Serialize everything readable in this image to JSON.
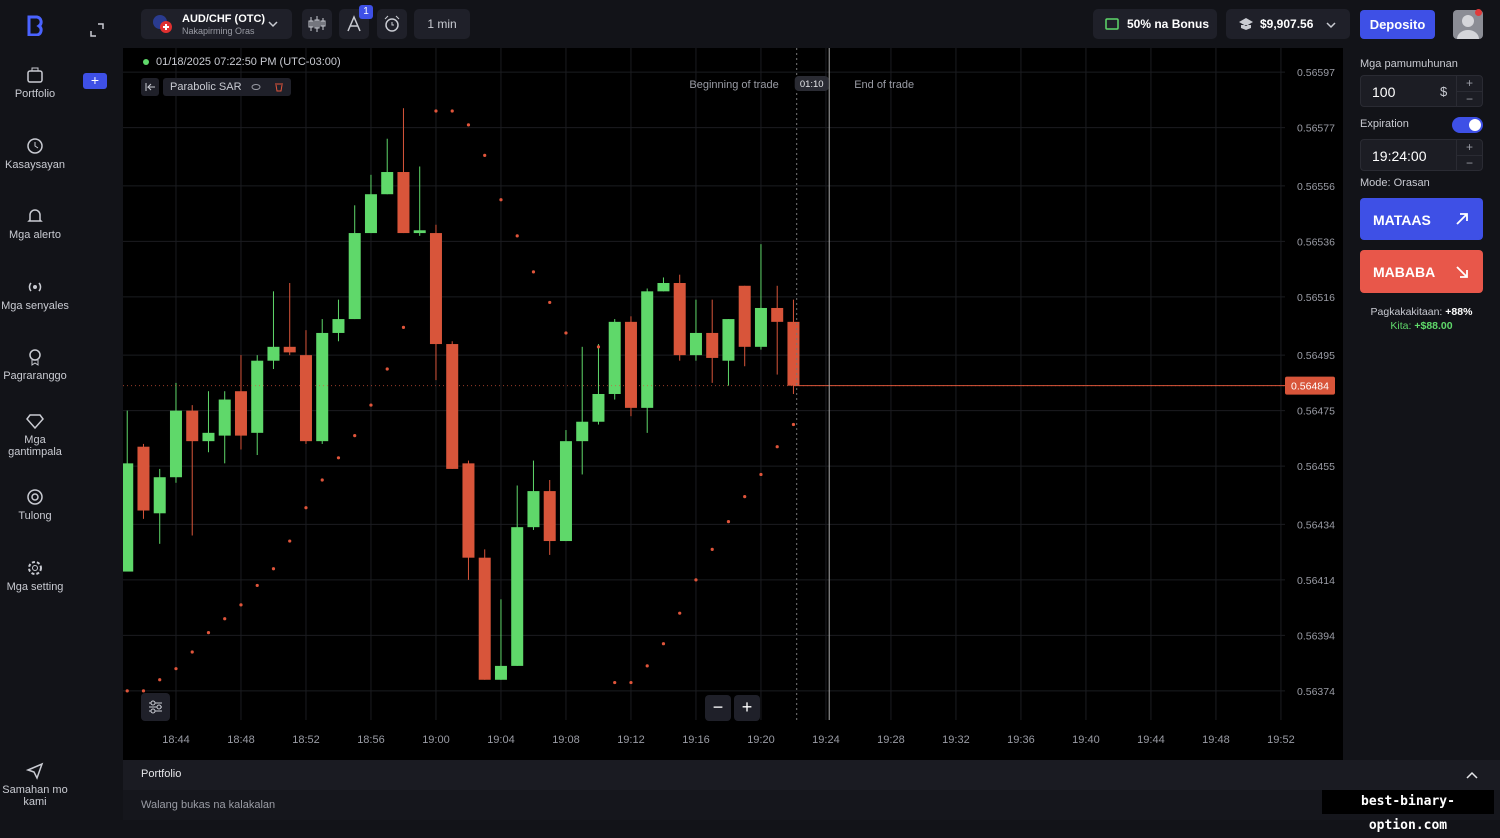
{
  "sidebar": {
    "items": [
      "Portfolio",
      "Kasaysayan",
      "Mga alerto",
      "Mga senyales",
      "Pagraranggo",
      "Mga gantimpala",
      "Tulong",
      "Mga setting"
    ],
    "footer_item": "Samahan mo kami"
  },
  "topbar": {
    "asset": "AUD/CHF (OTC)",
    "asset_mode": "Nakapirming Oras",
    "drawings_badge": 1,
    "timeframe": "1 min",
    "bonus": "50% na Bonus",
    "balance": "$9,907.56",
    "deposit": "Deposito"
  },
  "chart_data": {
    "type": "candlestick",
    "timestamp": "01/18/2025 07:22:50 PM (UTC-03:00)",
    "indicator": "Parabolic SAR",
    "trade_start_label": "Beginning of trade",
    "trade_end_label": "End of trade",
    "timer": "01:10",
    "x": [
      1121,
      1122,
      1123,
      1124,
      1125,
      1126,
      1127,
      1128,
      1129,
      1130,
      1131,
      1132,
      1133,
      1134,
      1135,
      1136,
      1137,
      1138,
      1139,
      1140,
      1141,
      1142,
      1143,
      1144,
      1145,
      1146,
      1147,
      1148,
      1149,
      1150,
      1151,
      1152,
      1153,
      1154,
      1155,
      1156,
      1157,
      1158,
      1159,
      1160,
      1161,
      1162
    ],
    "open": [
      0.56417,
      0.56462,
      0.56438,
      0.56451,
      0.56475,
      0.56464,
      0.56466,
      0.56482,
      0.56467,
      0.56493,
      0.56498,
      0.56495,
      0.56464,
      0.56503,
      0.56508,
      0.56539,
      0.56553,
      0.56561,
      0.56539,
      0.56539,
      0.56499,
      0.56456,
      0.56422,
      0.56378,
      0.56383,
      0.56433,
      0.56446,
      0.56428,
      0.56464,
      0.56471,
      0.56481,
      0.56507,
      0.56476,
      0.56518,
      0.56521,
      0.56495,
      0.56503,
      0.56493,
      0.5652,
      0.56498,
      0.56512,
      0.56507
    ],
    "high": [
      0.56475,
      0.56463,
      0.56454,
      0.56485,
      0.56477,
      0.56482,
      0.56482,
      0.56495,
      0.56495,
      0.56518,
      0.56521,
      0.56504,
      0.56508,
      0.56515,
      0.56549,
      0.5656,
      0.56573,
      0.56584,
      0.56563,
      0.56542,
      0.565,
      0.56457,
      0.56425,
      0.56407,
      0.56448,
      0.56457,
      0.5645,
      0.56468,
      0.56498,
      0.56499,
      0.56508,
      0.56509,
      0.56519,
      0.56523,
      0.56524,
      0.56515,
      0.56515,
      0.56508,
      0.5652,
      0.56535,
      0.5652,
      0.56515
    ],
    "low": [
      0.56417,
      0.56436,
      0.56427,
      0.56449,
      0.5643,
      0.5646,
      0.56456,
      0.56461,
      0.56459,
      0.5649,
      0.56495,
      0.56463,
      0.56463,
      0.565,
      0.56508,
      0.56539,
      0.56553,
      0.56539,
      0.56538,
      0.56486,
      0.56454,
      0.56414,
      0.56378,
      0.56378,
      0.56383,
      0.56432,
      0.56423,
      0.56428,
      0.56452,
      0.5647,
      0.56479,
      0.56473,
      0.56467,
      0.56518,
      0.56493,
      0.56493,
      0.56485,
      0.56484,
      0.56491,
      0.56497,
      0.56488,
      0.56481
    ],
    "close": [
      0.56456,
      0.56439,
      0.56451,
      0.56475,
      0.56464,
      0.56467,
      0.56479,
      0.56466,
      0.56493,
      0.56498,
      0.56496,
      0.56464,
      0.56503,
      0.56508,
      0.56539,
      0.56553,
      0.56561,
      0.56539,
      0.5654,
      0.56499,
      0.56454,
      0.56422,
      0.56378,
      0.56383,
      0.56433,
      0.56446,
      0.56428,
      0.56464,
      0.56471,
      0.56481,
      0.56507,
      0.56476,
      0.56518,
      0.56521,
      0.56495,
      0.56503,
      0.56494,
      0.56508,
      0.56498,
      0.56512,
      0.56507,
      0.56484
    ],
    "sar": [
      0.56374,
      0.56374,
      0.56378,
      0.56382,
      0.56388,
      0.56395,
      0.564,
      0.56405,
      0.56412,
      0.56418,
      0.56428,
      0.5644,
      0.5645,
      0.56458,
      0.56466,
      0.56477,
      0.5649,
      0.56505,
      null,
      0.56583,
      0.56583,
      0.56578,
      0.56567,
      0.56551,
      0.56538,
      0.56525,
      0.56514,
      0.56503,
      null,
      0.56498,
      0.56377,
      0.56377,
      0.56383,
      0.56391,
      0.56402,
      0.56414,
      0.56425,
      0.56435,
      0.56444,
      0.56452,
      0.56462,
      0.5647
    ],
    "xlim": [
      1120.74,
      1192.25
    ],
    "xticks": [
      {
        "value": 1124,
        "label": "18:44"
      },
      {
        "value": 1128,
        "label": "18:48"
      },
      {
        "value": 1132,
        "label": "18:52"
      },
      {
        "value": 1136,
        "label": "18:56"
      },
      {
        "value": 1140,
        "label": "19:00"
      },
      {
        "value": 1144,
        "label": "19:04"
      },
      {
        "value": 1148,
        "label": "19:08"
      },
      {
        "value": 1152,
        "label": "19:12"
      },
      {
        "value": 1156,
        "label": "19:16"
      },
      {
        "value": 1160,
        "label": "19:20"
      },
      {
        "value": 1164,
        "label": "19:24"
      },
      {
        "value": 1168,
        "label": "19:28"
      },
      {
        "value": 1172,
        "label": "19:32"
      },
      {
        "value": 1176,
        "label": "19:36"
      },
      {
        "value": 1180,
        "label": "19:40"
      },
      {
        "value": 1184,
        "label": "19:44"
      },
      {
        "value": 1188,
        "label": "19:48"
      },
      {
        "value": 1192,
        "label": "19:52"
      }
    ],
    "ylim": [
      0.563635,
      0.566057
    ],
    "yticks": [
      0.56597,
      0.56577,
      0.56556,
      0.56536,
      0.56516,
      0.56495,
      0.56475,
      0.56455,
      0.56434,
      0.56414,
      0.56394,
      0.56374
    ],
    "current_price": 0.56484,
    "trade_start": 1162.2,
    "trade_end": 1164.2,
    "up_color": "#5fd86a",
    "down_color": "#d8553a",
    "sar_color": "#e0553b",
    "grid": true
  },
  "trade_panel": {
    "investment_label": "Mga pamumuhunan",
    "investment": 100,
    "currency": "$",
    "expiration_label": "Expiration",
    "expiration": "19:24:00",
    "mode": "Mode: Orasan",
    "up": "MATAAS",
    "down": "MABABA",
    "payout_label": "Pagkakakitaan:",
    "payout_value": "+88%",
    "profit_label": "Kita:",
    "profit_value": "+$88.00"
  },
  "portfolio": {
    "title": "Portfolio",
    "empty": "Walang bukas na kalakalan"
  },
  "watermark": "best-binary-option.com"
}
